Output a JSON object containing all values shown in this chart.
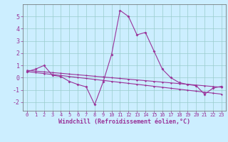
{
  "xlabel": "Windchill (Refroidissement éolien,°C)",
  "bg_color": "#cceeff",
  "grid_color": "#99cccc",
  "line_color": "#993399",
  "x": [
    0,
    1,
    2,
    3,
    4,
    5,
    6,
    7,
    8,
    9,
    10,
    11,
    12,
    13,
    14,
    15,
    16,
    17,
    18,
    19,
    20,
    21,
    22,
    23
  ],
  "y_main": [
    0.5,
    0.7,
    1.0,
    0.2,
    0.1,
    -0.3,
    -0.55,
    -0.75,
    -2.2,
    -0.35,
    1.9,
    5.5,
    5.0,
    3.5,
    3.7,
    2.2,
    0.7,
    0.0,
    -0.4,
    -0.55,
    -0.65,
    -1.35,
    -0.85,
    -0.7
  ],
  "y_trend1": [
    0.6,
    0.54,
    0.48,
    0.42,
    0.36,
    0.3,
    0.24,
    0.18,
    0.12,
    0.06,
    0.0,
    -0.06,
    -0.12,
    -0.18,
    -0.24,
    -0.3,
    -0.36,
    -0.42,
    -0.48,
    -0.54,
    -0.6,
    -0.66,
    -0.72,
    -0.78
  ],
  "y_trend2": [
    0.5,
    0.42,
    0.34,
    0.26,
    0.18,
    0.1,
    0.02,
    -0.06,
    -0.14,
    -0.22,
    -0.3,
    -0.38,
    -0.46,
    -0.54,
    -0.62,
    -0.7,
    -0.78,
    -0.86,
    -0.94,
    -1.02,
    -1.1,
    -1.18,
    -1.26,
    -1.34
  ],
  "ylim": [
    -2.7,
    6.0
  ],
  "xlim": [
    -0.5,
    23.5
  ],
  "yticks": [
    -2,
    -1,
    0,
    1,
    2,
    3,
    4,
    5
  ],
  "xticks": [
    0,
    1,
    2,
    3,
    4,
    5,
    6,
    7,
    8,
    9,
    10,
    11,
    12,
    13,
    14,
    15,
    16,
    17,
    18,
    19,
    20,
    21,
    22,
    23
  ]
}
